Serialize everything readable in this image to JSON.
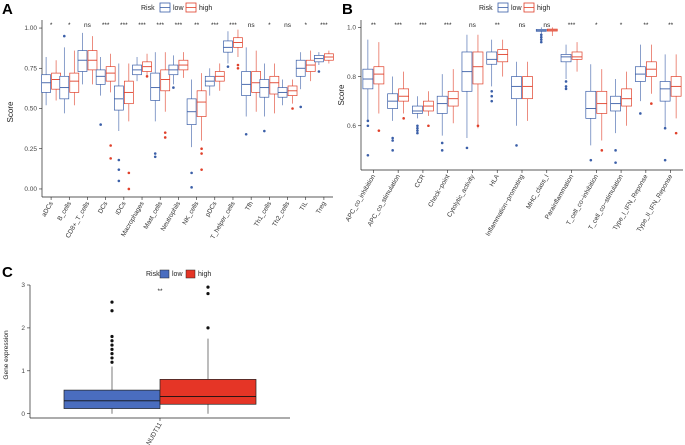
{
  "colors": {
    "low": "#3b5fa8",
    "high": "#e0402a",
    "low_fill": "#4a6dbf",
    "high_fill": "#e53526"
  },
  "chart_data": [
    {
      "panel": "A",
      "type": "box",
      "legend_title": "Risk",
      "legend_items": [
        "low",
        "high"
      ],
      "legend_position": "top",
      "ylabel": "Score",
      "ylim": [
        -0.05,
        1.05
      ],
      "yticks": [
        "0.00",
        "0.25",
        "0.50",
        "0.75",
        "1.00"
      ],
      "categories": [
        "aDCs",
        "B_cells",
        "CD8+_T_cells",
        "DCs",
        "iDCs",
        "Macrophages",
        "Mast_cells",
        "Neutrophils",
        "NK_cells",
        "pDCs",
        "T_helper_cells",
        "Tfh",
        "Th1_cells",
        "Th2_cells",
        "TIL",
        "Treg"
      ],
      "significance": [
        "*",
        "*",
        "ns",
        "***",
        "***",
        "***",
        "***",
        "***",
        "**",
        "***",
        "***",
        "ns",
        "*",
        "ns",
        "*",
        "***"
      ],
      "series": [
        {
          "name": "low",
          "boxes": [
            [
              0.52,
              0.6,
              0.66,
              0.71,
              0.82
            ],
            [
              0.47,
              0.56,
              0.63,
              0.7,
              0.88
            ],
            [
              0.65,
              0.73,
              0.8,
              0.86,
              0.97
            ],
            [
              0.58,
              0.65,
              0.7,
              0.74,
              0.82
            ],
            [
              0.36,
              0.49,
              0.56,
              0.64,
              0.78
            ],
            [
              0.67,
              0.71,
              0.74,
              0.77,
              0.82
            ],
            [
              0.42,
              0.55,
              0.63,
              0.72,
              0.85
            ],
            [
              0.65,
              0.71,
              0.74,
              0.77,
              0.83
            ],
            [
              0.26,
              0.4,
              0.48,
              0.56,
              0.68
            ],
            [
              0.58,
              0.64,
              0.67,
              0.7,
              0.75
            ],
            [
              0.78,
              0.85,
              0.88,
              0.92,
              0.98
            ],
            [
              0.45,
              0.58,
              0.65,
              0.73,
              0.88
            ],
            [
              0.45,
              0.57,
              0.63,
              0.68,
              0.78
            ],
            [
              0.52,
              0.57,
              0.6,
              0.63,
              0.68
            ],
            [
              0.62,
              0.7,
              0.75,
              0.8,
              0.85
            ],
            [
              0.77,
              0.79,
              0.81,
              0.83,
              0.85
            ]
          ],
          "outliers": [
            [],
            [
              0.95
            ],
            [],
            [
              0.4
            ],
            [
              0.18,
              0.12,
              0.05
            ],
            [],
            [
              0.22,
              0.2
            ],
            [
              0.63
            ],
            [
              0.1,
              0.01
            ],
            [],
            [
              0.76
            ],
            [
              0.34
            ],
            [
              0.36
            ],
            [],
            [
              0.51
            ],
            [
              0.73
            ]
          ]
        },
        {
          "name": "high",
          "boxes": [
            [
              0.55,
              0.62,
              0.68,
              0.72,
              0.8
            ],
            [
              0.52,
              0.6,
              0.67,
              0.72,
              0.86
            ],
            [
              0.65,
              0.74,
              0.8,
              0.86,
              0.95
            ],
            [
              0.6,
              0.67,
              0.72,
              0.76,
              0.84
            ],
            [
              0.42,
              0.53,
              0.6,
              0.67,
              0.78
            ],
            [
              0.7,
              0.73,
              0.76,
              0.79,
              0.84
            ],
            [
              0.48,
              0.61,
              0.68,
              0.74,
              0.85
            ],
            [
              0.69,
              0.74,
              0.77,
              0.8,
              0.85
            ],
            [
              0.3,
              0.45,
              0.54,
              0.61,
              0.72
            ],
            [
              0.61,
              0.67,
              0.7,
              0.73,
              0.78
            ],
            [
              0.82,
              0.88,
              0.91,
              0.94,
              0.99
            ],
            [
              0.48,
              0.6,
              0.66,
              0.73,
              0.86
            ],
            [
              0.47,
              0.59,
              0.66,
              0.7,
              0.78
            ],
            [
              0.53,
              0.58,
              0.61,
              0.64,
              0.68
            ],
            [
              0.67,
              0.73,
              0.77,
              0.8,
              0.86
            ],
            [
              0.78,
              0.8,
              0.82,
              0.84,
              0.86
            ]
          ],
          "outliers": [
            [],
            [],
            [],
            [
              0.27,
              0.19
            ],
            [
              0.1,
              0.0
            ],
            [
              0.7
            ],
            [
              0.35,
              0.32
            ],
            [],
            [
              0.25,
              0.22,
              0.12
            ],
            [],
            [
              0.77,
              0.75
            ],
            [],
            [],
            [
              0.5
            ],
            [],
            []
          ]
        }
      ]
    },
    {
      "panel": "B",
      "type": "box",
      "legend_title": "Risk",
      "legend_items": [
        "low",
        "high"
      ],
      "legend_position": "top",
      "ylabel": "Score",
      "ylim": [
        0.42,
        1.03
      ],
      "yticks": [
        "0.6",
        "0.8",
        "1.0"
      ],
      "categories": [
        "APC_co_inhibition",
        "APC_co_stimulation",
        "CCR",
        "Check−point",
        "Cytolytic_activity",
        "HLA",
        "Inflammation−promoting",
        "MHC_class_I",
        "Parainflammation",
        "T_cell_co−inhibition",
        "T_cell_co−stimulation",
        "Type_I_IFN_Reponse",
        "Type_II_IFN_Reponse"
      ],
      "significance": [
        "**",
        "***",
        "***",
        "***",
        "ns",
        "**",
        "ns",
        "ns",
        "***",
        "*",
        "*",
        "**",
        "**"
      ],
      "series": [
        {
          "name": "low",
          "boxes": [
            [
              0.62,
              0.75,
              0.79,
              0.83,
              0.95
            ],
            [
              0.62,
              0.67,
              0.7,
              0.73,
              0.8
            ],
            [
              0.63,
              0.65,
              0.66,
              0.68,
              0.72
            ],
            [
              0.56,
              0.65,
              0.69,
              0.72,
              0.81
            ],
            [
              0.55,
              0.74,
              0.82,
              0.9,
              0.97
            ],
            [
              0.76,
              0.85,
              0.87,
              0.9,
              0.95
            ],
            [
              0.6,
              0.71,
              0.76,
              0.8,
              0.86
            ],
            [
              0.96,
              0.984,
              0.988,
              0.992,
              1.0
            ],
            [
              0.79,
              0.86,
              0.88,
              0.89,
              0.93
            ],
            [
              0.52,
              0.63,
              0.67,
              0.74,
              0.85
            ],
            [
              0.57,
              0.66,
              0.69,
              0.72,
              0.79
            ],
            [
              0.7,
              0.78,
              0.81,
              0.84,
              0.93
            ],
            [
              0.59,
              0.7,
              0.75,
              0.78,
              0.89
            ]
          ],
          "outliers": [
            [
              0.62,
              0.6,
              0.48
            ],
            [
              0.55,
              0.54,
              0.5
            ],
            [
              0.6,
              0.59,
              0.58,
              0.57
            ],
            [
              0.53,
              0.5
            ],
            [
              0.51
            ],
            [
              0.74,
              0.72,
              0.7
            ],
            [
              0.52
            ],
            [
              0.97,
              0.96,
              0.95,
              0.94
            ],
            [
              0.78,
              0.76,
              0.75
            ],
            [
              0.46
            ],
            [
              0.5,
              0.45
            ],
            [
              0.65
            ],
            [
              0.59,
              0.46
            ]
          ]
        },
        {
          "name": "high",
          "boxes": [
            [
              0.65,
              0.77,
              0.81,
              0.84,
              0.94
            ],
            [
              0.65,
              0.7,
              0.72,
              0.75,
              0.82
            ],
            [
              0.64,
              0.66,
              0.68,
              0.7,
              0.74
            ],
            [
              0.61,
              0.68,
              0.71,
              0.74,
              0.83
            ],
            [
              0.59,
              0.77,
              0.84,
              0.9,
              0.97
            ],
            [
              0.8,
              0.86,
              0.89,
              0.91,
              0.95
            ],
            [
              0.62,
              0.71,
              0.76,
              0.8,
              0.86
            ],
            [
              0.965,
              0.985,
              0.989,
              0.993,
              1.0
            ],
            [
              0.82,
              0.87,
              0.88,
              0.9,
              0.94
            ],
            [
              0.54,
              0.65,
              0.69,
              0.74,
              0.83
            ],
            [
              0.6,
              0.68,
              0.71,
              0.75,
              0.82
            ],
            [
              0.73,
              0.8,
              0.83,
              0.86,
              0.93
            ],
            [
              0.63,
              0.72,
              0.76,
              0.8,
              0.89
            ]
          ],
          "outliers": [
            [
              0.58
            ],
            [
              0.63
            ],
            [
              0.6
            ],
            [],
            [
              0.6
            ],
            [],
            [],
            [],
            [],
            [
              0.5
            ],
            [],
            [
              0.69
            ],
            [
              0.57
            ]
          ]
        }
      ]
    },
    {
      "panel": "C",
      "type": "box",
      "legend_title": "Risk",
      "legend_items": [
        "low",
        "high"
      ],
      "legend_position": "top",
      "ylabel": "Gene expression",
      "ylim": [
        -0.1,
        3.0
      ],
      "yticks": [
        "0",
        "1",
        "2",
        "3"
      ],
      "categories": [
        "NUDT11"
      ],
      "significance": [
        "**"
      ],
      "series": [
        {
          "name": "low",
          "boxes": [
            [
              0.0,
              0.12,
              0.3,
              0.55,
              1.1
            ]
          ],
          "outliers": [
            [
              1.2,
              1.3,
              1.4,
              1.5,
              1.6,
              1.7,
              1.8,
              2.4,
              2.6
            ]
          ]
        },
        {
          "name": "high",
          "boxes": [
            [
              0.0,
              0.22,
              0.4,
              0.8,
              1.75
            ]
          ],
          "outliers": [
            [
              2.0,
              2.8,
              2.95
            ]
          ]
        }
      ]
    }
  ]
}
